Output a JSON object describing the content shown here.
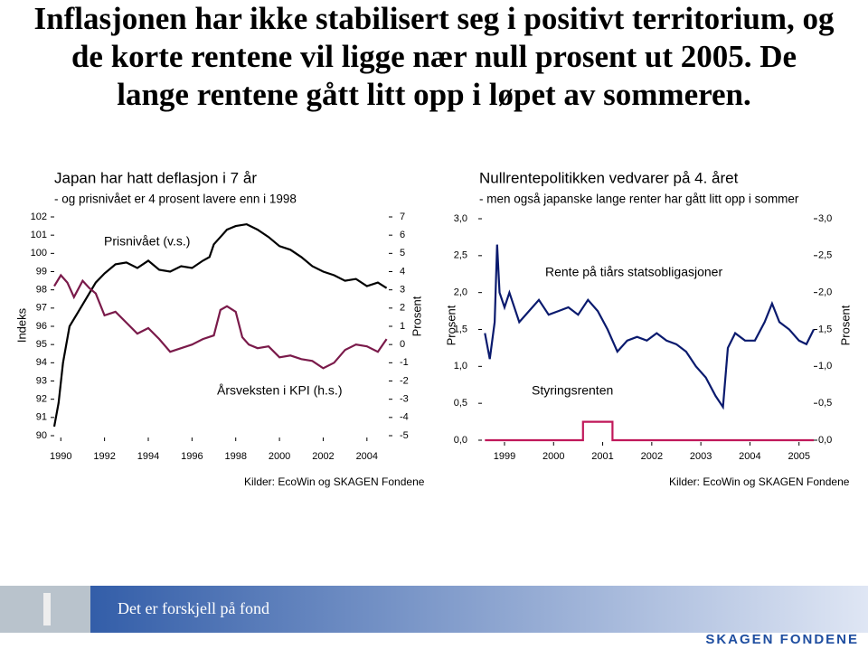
{
  "title": [
    "Inflasjonen har ikke stabilisert seg i positivt territorium, og",
    "de korte rentene vil ligge nær null prosent ut 2005. De",
    "lange rentene gått litt opp i løpet av sommeren."
  ],
  "chart_data": [
    {
      "type": "line",
      "title": "Japan har hatt deflasjon i 7 år",
      "subtitle": "- og prisnivået er 4 prosent lavere enn i 1998",
      "ylabel": "Indeks",
      "y2label": "Prosent",
      "source": "Kilder: EcoWin og SKAGEN Fondene",
      "xlim": [
        1989.7,
        2005.0
      ],
      "xticks": [
        1990,
        1992,
        1994,
        1996,
        1998,
        2000,
        2002,
        2004
      ],
      "ylim": [
        90,
        102
      ],
      "yticks": [
        90,
        91,
        92,
        93,
        94,
        95,
        96,
        97,
        98,
        99,
        100,
        101,
        102
      ],
      "y2lim": [
        -5,
        7
      ],
      "y2ticks": [
        -5,
        -4,
        -3,
        -2,
        -1,
        0,
        1,
        2,
        3,
        4,
        5,
        6,
        7
      ],
      "series": [
        {
          "name": "Prisnivået (v.s.)",
          "color": "#000000",
          "x": [
            1989.7,
            1989.9,
            1990.1,
            1990.4,
            1990.8,
            1991.2,
            1991.6,
            1992.0,
            1992.5,
            1993.0,
            1993.5,
            1994.0,
            1994.5,
            1995.0,
            1995.5,
            1996.0,
            1996.5,
            1996.8,
            1997.0,
            1997.3,
            1997.6,
            1998.0,
            1998.5,
            1999.0,
            1999.5,
            2000.0,
            2000.5,
            2001.0,
            2001.5,
            2002.0,
            2002.5,
            2003.0,
            2003.5,
            2004.0,
            2004.5,
            2004.9
          ],
          "values": [
            90.5,
            91.8,
            94.0,
            96.0,
            96.8,
            97.6,
            98.4,
            98.9,
            99.4,
            99.5,
            99.2,
            99.6,
            99.1,
            99.0,
            99.3,
            99.2,
            99.6,
            99.8,
            100.5,
            100.9,
            101.3,
            101.5,
            101.6,
            101.3,
            100.9,
            100.4,
            100.2,
            99.8,
            99.3,
            99.0,
            98.8,
            98.5,
            98.6,
            98.2,
            98.4,
            98.1
          ]
        },
        {
          "name": "Årsveksten i KPI (h.s.)",
          "color": "#7a1a4a",
          "axis": "y2",
          "x": [
            1989.7,
            1990.0,
            1990.3,
            1990.6,
            1991.0,
            1991.3,
            1991.6,
            1992.0,
            1992.5,
            1993.0,
            1993.5,
            1994.0,
            1994.5,
            1995.0,
            1995.5,
            1996.0,
            1996.5,
            1997.0,
            1997.3,
            1997.6,
            1998.0,
            1998.3,
            1998.6,
            1999.0,
            1999.5,
            2000.0,
            2000.5,
            2001.0,
            2001.5,
            2002.0,
            2002.5,
            2003.0,
            2003.5,
            2004.0,
            2004.5,
            2004.9
          ],
          "values": [
            3.2,
            3.8,
            3.4,
            2.6,
            3.5,
            3.1,
            2.8,
            1.6,
            1.8,
            1.2,
            0.6,
            0.9,
            0.3,
            -0.4,
            -0.2,
            0.0,
            0.3,
            0.5,
            1.9,
            2.1,
            1.8,
            0.4,
            0.0,
            -0.2,
            -0.1,
            -0.7,
            -0.6,
            -0.8,
            -0.9,
            -1.3,
            -1.0,
            -0.3,
            0.0,
            -0.1,
            -0.4,
            0.3
          ]
        }
      ]
    },
    {
      "type": "line",
      "title": "Nullrentepolitikken vedvarer på 4. året",
      "subtitle": "- men også japanske lange renter har gått litt opp i sommer",
      "ylabel": "Prosent",
      "source": "Kilder: EcoWin og SKAGEN Fondene",
      "xlim": [
        1998.54,
        2005.3
      ],
      "xticks": [
        1999,
        2000,
        2001,
        2002,
        2003,
        2004,
        2005
      ],
      "ylim": [
        0,
        3
      ],
      "yticks": [
        {
          "value": 0,
          "label": "0,0"
        },
        {
          "value": 0.5,
          "label": "0,5"
        },
        {
          "value": 1,
          "label": "1,0"
        },
        {
          "value": 1.5,
          "label": "1,5"
        },
        {
          "value": 2,
          "label": "2,0"
        },
        {
          "value": 2.5,
          "label": "2,5"
        },
        {
          "value": 3,
          "label": "3,0"
        }
      ],
      "series": [
        {
          "name": "Rente på tiårs statsobligasjoner",
          "color": "#0a1a6e",
          "x": [
            1998.6,
            1998.7,
            1998.8,
            1998.85,
            1998.9,
            1999.0,
            1999.1,
            1999.3,
            1999.5,
            1999.7,
            1999.9,
            2000.1,
            2000.3,
            2000.5,
            2000.7,
            2000.9,
            2001.1,
            2001.3,
            2001.5,
            2001.7,
            2001.9,
            2002.1,
            2002.3,
            2002.5,
            2002.7,
            2002.9,
            2003.1,
            2003.3,
            2003.45,
            2003.55,
            2003.7,
            2003.9,
            2004.1,
            2004.3,
            2004.45,
            2004.6,
            2004.8,
            2005.0,
            2005.15,
            2005.3
          ],
          "values": [
            1.45,
            1.1,
            1.6,
            2.65,
            2.0,
            1.8,
            2.0,
            1.6,
            1.75,
            1.9,
            1.7,
            1.75,
            1.8,
            1.7,
            1.9,
            1.75,
            1.5,
            1.2,
            1.35,
            1.4,
            1.35,
            1.45,
            1.35,
            1.3,
            1.2,
            1.0,
            0.85,
            0.6,
            0.45,
            1.25,
            1.45,
            1.35,
            1.35,
            1.6,
            1.85,
            1.6,
            1.5,
            1.35,
            1.3,
            1.5
          ]
        },
        {
          "name": "Styringsrenten",
          "color": "#c0185a",
          "x": [
            1998.6,
            2000.6,
            2000.6,
            2001.2,
            2001.2,
            2005.3
          ],
          "values": [
            0,
            0,
            0.25,
            0.25,
            0,
            0
          ]
        }
      ]
    }
  ],
  "footer": {
    "slogan": "Det er forskjell på fond",
    "logo": "SKAGEN FONDENE"
  }
}
